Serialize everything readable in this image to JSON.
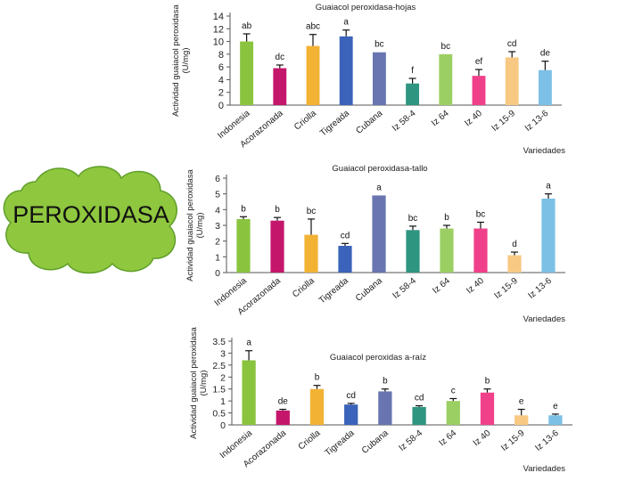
{
  "badge": {
    "label": "PEROXIDASA"
  },
  "chart_data": [
    {
      "type": "bar",
      "title": "Guaiacol peroxidasa-hojas",
      "ylabel": "Actividad guaiacol peroxidasa (U/mg)",
      "xlabel": "Variedades",
      "ylim": [
        0,
        14
      ],
      "yticks": [
        "0",
        "2",
        "4",
        "6",
        "8",
        "10",
        "12",
        "14"
      ],
      "categories": [
        "Indonesia",
        "Acorazonada",
        "Criolla",
        "Tigreada",
        "Cubana",
        "Iz 58-4",
        "Iz 64",
        "Iz 40",
        "Iz 15-9",
        "Iz 13-6"
      ],
      "values": [
        10.0,
        5.8,
        9.3,
        10.8,
        8.3,
        3.4,
        8.0,
        4.6,
        7.5,
        5.5
      ],
      "errors": [
        1.2,
        0.5,
        1.8,
        1.0,
        0.0,
        0.8,
        0.0,
        1.0,
        0.9,
        1.4
      ],
      "letters": [
        "ab",
        "dc",
        "abc",
        "a",
        "bc",
        "f",
        "bc",
        "ef",
        "cd",
        "de"
      ],
      "colors": [
        "#8ac43f",
        "#c4176c",
        "#f2b233",
        "#3b63b9",
        "#6875b0",
        "#2e9580",
        "#9ccf63",
        "#f0408a",
        "#f7c983",
        "#7cc0e6"
      ],
      "grid": false,
      "legend": "none"
    },
    {
      "type": "bar",
      "title": "Guaiacol peroxidasa-tallo",
      "ylabel": "Actividad guaiacol peroxidasa (U/mg)",
      "xlabel": "Variedades",
      "ylim": [
        0,
        6
      ],
      "yticks": [
        "0",
        "1",
        "2",
        "3",
        "4",
        "5",
        "6"
      ],
      "categories": [
        "Indonesia",
        "Acorazonada",
        "Criolla",
        "Tigreada",
        "Cubana",
        "Iz 58-4",
        "Iz 64",
        "Iz 40",
        "Iz 15-9",
        "Iz 13-6"
      ],
      "values": [
        3.4,
        3.3,
        2.4,
        1.7,
        4.9,
        2.7,
        2.8,
        2.8,
        1.1,
        4.7
      ],
      "errors": [
        0.15,
        0.2,
        1.0,
        0.15,
        0.0,
        0.25,
        0.2,
        0.4,
        0.2,
        0.3
      ],
      "letters": [
        "b",
        "b",
        "bc",
        "cd",
        "a",
        "bc",
        "b",
        "bc",
        "d",
        "a"
      ],
      "colors": [
        "#8ac43f",
        "#c4176c",
        "#f2b233",
        "#3b63b9",
        "#6875b0",
        "#2e9580",
        "#9ccf63",
        "#f0408a",
        "#f7c983",
        "#7cc0e6"
      ],
      "grid": false,
      "legend": "none"
    },
    {
      "type": "bar",
      "title": "Guaiacol peroxidas a-raíz",
      "ylabel": "Actividad guaiacol peroxidasa (U/mg)",
      "xlabel": "Variedades",
      "ylim": [
        0,
        3.5
      ],
      "yticks": [
        "0",
        "0.5",
        "1",
        "1.5",
        "2",
        "2.5",
        "3",
        "3.5"
      ],
      "categories": [
        "Indonesia",
        "Acorazonada",
        "Criolla",
        "Tigreada",
        "Cubana",
        "Iz 58-4",
        "Iz 64",
        "Iz 40",
        "Iz 15-9",
        "Iz 13-6"
      ],
      "values": [
        2.7,
        0.6,
        1.5,
        0.85,
        1.4,
        0.75,
        1.0,
        1.35,
        0.4,
        0.4
      ],
      "errors": [
        0.4,
        0.05,
        0.15,
        0.05,
        0.1,
        0.05,
        0.1,
        0.15,
        0.25,
        0.05
      ],
      "letters": [
        "a",
        "de",
        "b",
        "cd",
        "b",
        "cd",
        "c",
        "b",
        "e",
        "e"
      ],
      "colors": [
        "#8ac43f",
        "#c4176c",
        "#f2b233",
        "#3b63b9",
        "#6875b0",
        "#2e9580",
        "#9ccf63",
        "#f0408a",
        "#f7c983",
        "#7cc0e6"
      ],
      "grid": false,
      "legend": "none"
    }
  ]
}
